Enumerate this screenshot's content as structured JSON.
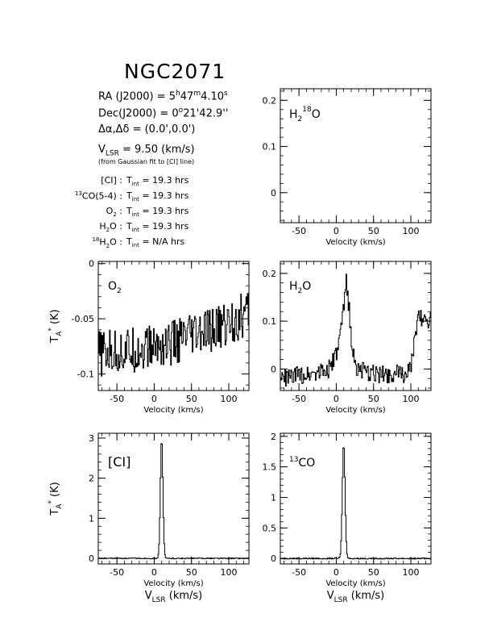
{
  "title": "NGC2071",
  "info": {
    "ra_label": "RA (J2000) =",
    "ra_h": "5",
    "ra_m": "47",
    "ra_s": "4.10",
    "dec_label": "Dec(J2000) =",
    "dec_d": "0",
    "dec_rest": "21'42.9''",
    "offset_label": "Δα,Δδ =",
    "offset_value": "(0.0',0.0')",
    "vlsr_label": "V",
    "vlsr_sub": "LSR",
    "vlsr_value": "= 9.50 (km/s)",
    "vlsr_note": "(from Gaussian fit to [CI] line)"
  },
  "observations": [
    {
      "pre": "[CI]",
      "sup": "",
      "sub": "",
      "post": "",
      "tint": "= 19.3 hrs"
    },
    {
      "pre": "",
      "sup": "13",
      "sub": "",
      "post": "CO(5-4)",
      "tint": "= 19.3 hrs"
    },
    {
      "pre": "O",
      "sup": "",
      "sub": "2",
      "post": "",
      "tint": "= 19.3 hrs"
    },
    {
      "pre": "H",
      "sup": "",
      "sub": "2",
      "post": "O",
      "tint": "= 19.3 hrs"
    },
    {
      "pre": "H",
      "sup": "18",
      "sub": "2",
      "post": "O",
      "tint": "= N/A hrs"
    }
  ],
  "tint_label": "T",
  "tint_sub": "int",
  "chart_data": [
    {
      "type": "line",
      "label": "H",
      "label_sub": "2",
      "label_sup": "18",
      "label_post": "O",
      "xlim": [
        -75,
        127
      ],
      "ylim": [
        -0.065,
        0.225
      ],
      "xticks": [
        -50,
        0,
        50,
        100
      ],
      "yticks": [
        0,
        0.1,
        0.2
      ],
      "xlabel": "Velocity (km/s)",
      "ylabel": "",
      "x": [],
      "y": []
    },
    {
      "type": "line",
      "label": "O",
      "label_sub": "2",
      "xlim": [
        -75,
        127
      ],
      "ylim": [
        -0.115,
        0.002
      ],
      "xticks": [
        -50,
        0,
        50,
        100
      ],
      "yticks": [
        -0.1,
        -0.05,
        0
      ],
      "xlabel": "Velocity (km/s)",
      "ylabel": "T",
      "trend": {
        "x": [
          -75,
          -25,
          25,
          75,
          125
        ],
        "y": [
          -0.082,
          -0.078,
          -0.072,
          -0.062,
          -0.045
        ]
      },
      "noise": 0.013
    },
    {
      "type": "line",
      "label": "H",
      "label_sub": "2",
      "label_post": "O",
      "xlim": [
        -75,
        127
      ],
      "ylim": [
        -0.045,
        0.225
      ],
      "xticks": [
        -50,
        0,
        50,
        100
      ],
      "yticks": [
        0,
        0.1,
        0.2
      ],
      "xlabel": "Velocity (km/s)",
      "ylabel": "",
      "trend": {
        "x": [
          -75,
          -40,
          -10,
          0,
          5,
          10,
          13,
          16,
          20,
          25,
          40,
          90,
          100,
          104,
          108,
          112,
          127
        ],
        "y": [
          -0.02,
          -0.01,
          0.0,
          0.03,
          0.07,
          0.13,
          0.19,
          0.14,
          0.06,
          0.005,
          -0.01,
          -0.01,
          0.0,
          0.05,
          0.1,
          0.11,
          0.1
        ]
      },
      "noise": 0.012
    },
    {
      "type": "line",
      "label": "[CI]",
      "xlim": [
        -75,
        127
      ],
      "ylim": [
        -0.14,
        3.12
      ],
      "xticks": [
        -50,
        0,
        50,
        100
      ],
      "yticks": [
        0,
        1,
        2,
        3
      ],
      "xlabel": "Velocity (km/s)",
      "xlabel2": "V",
      "xlabel2_sub": "LSR",
      "xlabel2_post": "(km/s)",
      "ylabel": "T",
      "peak": {
        "center": 9.5,
        "width": 1.7,
        "amp": 2.98
      },
      "noise": 0.012
    },
    {
      "type": "line",
      "label": "CO",
      "label_sup": "13",
      "xlim": [
        -75,
        127
      ],
      "ylim": [
        -0.09,
        2.05
      ],
      "xticks": [
        -50,
        0,
        50,
        100
      ],
      "yticks": [
        0,
        0.5,
        1,
        1.5,
        2
      ],
      "xlabel": "Velocity (km/s)",
      "xlabel2": "V",
      "xlabel2_sub": "LSR",
      "xlabel2_post": "(km/s)",
      "ylabel": "",
      "peak": {
        "center": 9.5,
        "width": 1.8,
        "amp": 1.88
      },
      "noise": 0.01
    }
  ],
  "ylabel_sub": "A",
  "ylabel_sup": "*",
  "ylabel_post": "(K)"
}
